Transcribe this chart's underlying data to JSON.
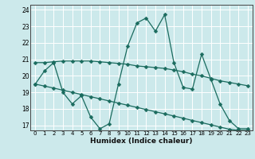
{
  "xlabel": "Humidex (Indice chaleur)",
  "bg_color": "#cce9eb",
  "grid_color": "#ffffff",
  "line_color": "#1a6b5e",
  "xlim": [
    -0.5,
    23.5
  ],
  "ylim": [
    16.7,
    24.3
  ],
  "xticks": [
    0,
    1,
    2,
    3,
    4,
    5,
    6,
    7,
    8,
    9,
    10,
    11,
    12,
    13,
    14,
    15,
    16,
    17,
    18,
    19,
    20,
    21,
    22,
    23
  ],
  "yticks": [
    17,
    18,
    19,
    20,
    21,
    22,
    23,
    24
  ],
  "line1_x": [
    0,
    1,
    2,
    3,
    4,
    5,
    6,
    7,
    8,
    9,
    10,
    11,
    12,
    13,
    14,
    15,
    16,
    17,
    18,
    19,
    20,
    21,
    22,
    23
  ],
  "line1_y": [
    19.5,
    20.3,
    20.8,
    19.0,
    18.3,
    18.8,
    17.5,
    16.8,
    17.1,
    19.5,
    21.8,
    23.2,
    23.5,
    22.7,
    23.7,
    20.8,
    19.3,
    19.2,
    21.3,
    19.8,
    18.3,
    17.3,
    16.8,
    16.8
  ],
  "line2_x": [
    0,
    1,
    2,
    3,
    4,
    5,
    6,
    7,
    8,
    9,
    10,
    11,
    12,
    13,
    14,
    15,
    16,
    17,
    18,
    19,
    20,
    21,
    22,
    23
  ],
  "line2_y": [
    20.8,
    20.8,
    20.85,
    20.9,
    20.9,
    20.9,
    20.9,
    20.85,
    20.8,
    20.75,
    20.7,
    20.6,
    20.55,
    20.5,
    20.45,
    20.35,
    20.25,
    20.1,
    20.0,
    19.85,
    19.7,
    19.6,
    19.5,
    19.4
  ],
  "line3_x": [
    0,
    1,
    2,
    3,
    4,
    5,
    6,
    7,
    8,
    9,
    10,
    11,
    12,
    13,
    14,
    15,
    16,
    17,
    18,
    19,
    20,
    21,
    22,
    23
  ],
  "line3_y": [
    19.5,
    19.38,
    19.26,
    19.13,
    19.0,
    18.87,
    18.74,
    18.61,
    18.48,
    18.35,
    18.22,
    18.09,
    17.96,
    17.83,
    17.7,
    17.57,
    17.44,
    17.3,
    17.17,
    17.04,
    16.9,
    16.77,
    16.7,
    16.7
  ]
}
